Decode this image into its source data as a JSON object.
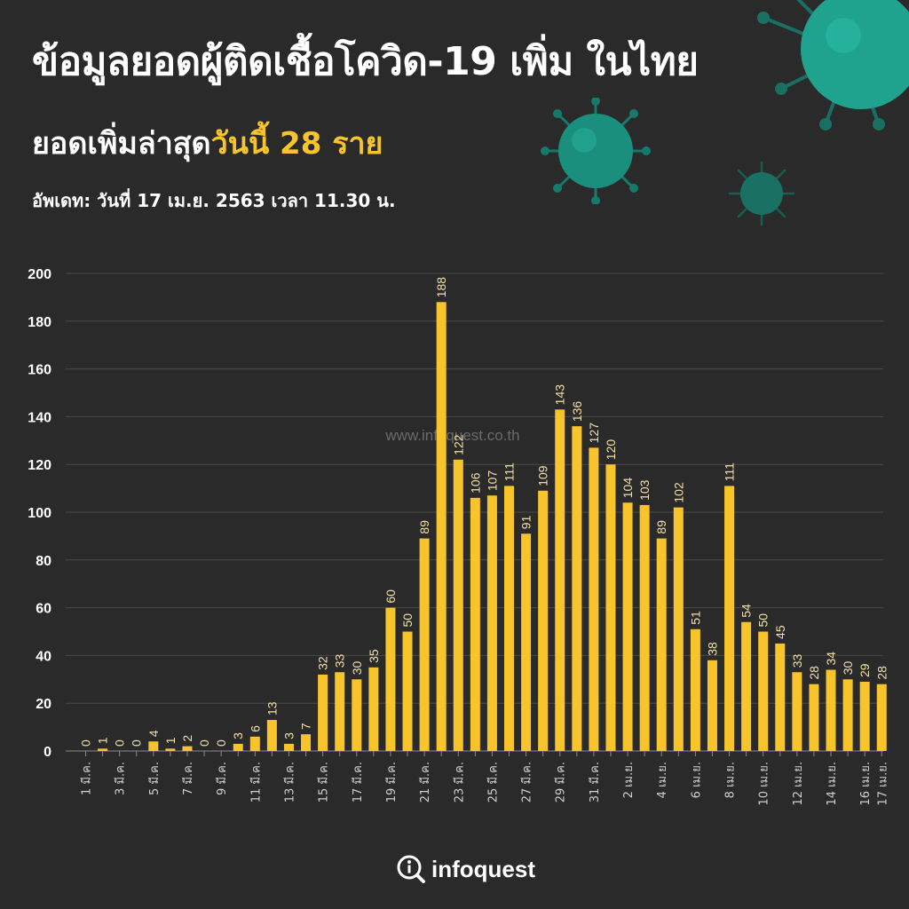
{
  "header": {
    "title": "ข้อมูลยอดผู้ติดเชื้อโควิด-19 เพิ่ม ในไทย",
    "subtitle_prefix": "ยอดเพิ่มล่าสุด",
    "subtitle_highlight": "วันนี้ 28 ราย",
    "update": "อัพเดท: วันที่ 17 เม.ย. 2563 เวลา 11.30 น."
  },
  "watermark": "www.infoquest.co.th",
  "logo": {
    "text": "infoquest",
    "icon": "info-search-icon"
  },
  "colors": {
    "background": "#2b2a2b",
    "bar": "#f7c52b",
    "grid": "#4a494a",
    "label": "#f0e0a8",
    "virus": "#1fa38f"
  },
  "chart_data": {
    "type": "bar",
    "categories": [
      "1 มี.ค.",
      "2 มี.ค.",
      "3 มี.ค.",
      "4 มี.ค.",
      "5 มี.ค.",
      "6 มี.ค.",
      "7 มี.ค.",
      "8 มี.ค.",
      "9 มี.ค.",
      "10 มี.ค.",
      "11 มี.ค.",
      "12 มี.ค.",
      "13 มี.ค.",
      "14 มี.ค.",
      "15 มี.ค.",
      "16 มี.ค.",
      "17 มี.ค.",
      "18 มี.ค.",
      "19 มี.ค.",
      "20 มี.ค.",
      "21 มี.ค.",
      "22 มี.ค.",
      "23 มี.ค.",
      "24 มี.ค.",
      "25 มี.ค.",
      "26 มี.ค.",
      "27 มี.ค.",
      "28 มี.ค.",
      "29 มี.ค.",
      "30 มี.ค.",
      "31 มี.ค.",
      "1 เม.ย.",
      "2 เม.ย.",
      "3 เม.ย.",
      "4 เม.ย.",
      "5 เม.ย.",
      "6 เม.ย.",
      "7 เม.ย.",
      "8 เม.ย.",
      "9 เม.ย.",
      "10 เม.ย.",
      "11 เม.ย.",
      "12 เม.ย.",
      "13 เม.ย.",
      "14 เม.ย.",
      "15 เม.ย.",
      "16 เม.ย.",
      "17 เม.ย."
    ],
    "tick_labels": [
      "1 มี.ค.",
      "",
      "3 มี.ค.",
      "",
      "5 มี.ค.",
      "",
      "7 มี.ค.",
      "",
      "9 มี.ค.",
      "",
      "11 มี.ค.",
      "",
      "13 มี.ค.",
      "",
      "15 มี.ค.",
      "",
      "17 มี.ค.",
      "",
      "19 มี.ค.",
      "",
      "21 มี.ค.",
      "",
      "23 มี.ค.",
      "",
      "25 มี.ค.",
      "",
      "27 มี.ค.",
      "",
      "29 มี.ค.",
      "",
      "31 มี.ค.",
      "",
      "2 เม.ย.",
      "",
      "4 เม.ย.",
      "",
      "6 เม.ย.",
      "",
      "8 เม.ย.",
      "",
      "10 เม.ย.",
      "",
      "12 เม.ย.",
      "",
      "14 เม.ย.",
      "",
      "16 เม.ย.",
      "17 เม.ย."
    ],
    "values": [
      0,
      1,
      0,
      0,
      4,
      1,
      2,
      0,
      0,
      3,
      6,
      13,
      3,
      7,
      32,
      33,
      30,
      35,
      60,
      50,
      89,
      188,
      122,
      106,
      107,
      111,
      91,
      109,
      143,
      136,
      127,
      120,
      104,
      103,
      89,
      102,
      51,
      38,
      111,
      54,
      50,
      45,
      33,
      28,
      34,
      30,
      29,
      28
    ],
    "ylim": [
      0,
      200
    ],
    "yticks": [
      0,
      20,
      40,
      60,
      80,
      100,
      120,
      140,
      160,
      180,
      200
    ],
    "grid": true
  }
}
